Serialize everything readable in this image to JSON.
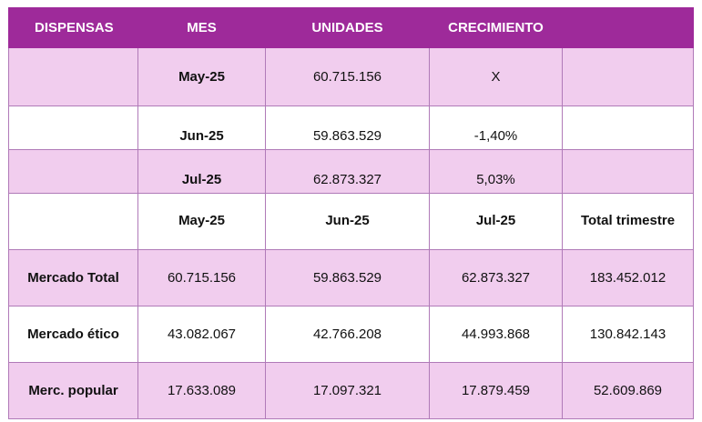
{
  "header": {
    "col1": "DISPENSAS",
    "col2": "MES",
    "col3": "UNIDADES",
    "col4": "CRECIMIENTO",
    "col5": ""
  },
  "monthly": [
    {
      "mes": "May-25",
      "unidades": "60.715.156",
      "crecimiento": "X"
    },
    {
      "mes": "Jun-25",
      "unidades": "59.863.529",
      "crecimiento": "-1,40%"
    },
    {
      "mes": "Jul-25",
      "unidades": "62.873.327",
      "crecimiento": "5,03%"
    }
  ],
  "summary_header": {
    "c1": "",
    "c2": "May-25",
    "c3": "Jun-25",
    "c4": "Jul-25",
    "c5": "Total trimestre"
  },
  "summary_rows": [
    {
      "label": "Mercado Total",
      "may": "60.715.156",
      "jun": "59.863.529",
      "jul": "62.873.327",
      "total": "183.452.012"
    },
    {
      "label": "Mercado ético",
      "may": "43.082.067",
      "jun": "42.766.208",
      "jul": "44.993.868",
      "total": "130.842.143"
    },
    {
      "label": "Merc. popular",
      "may": "17.633.089",
      "jun": "17.097.321",
      "jul": "17.879.459",
      "total": "52.609.869"
    }
  ]
}
